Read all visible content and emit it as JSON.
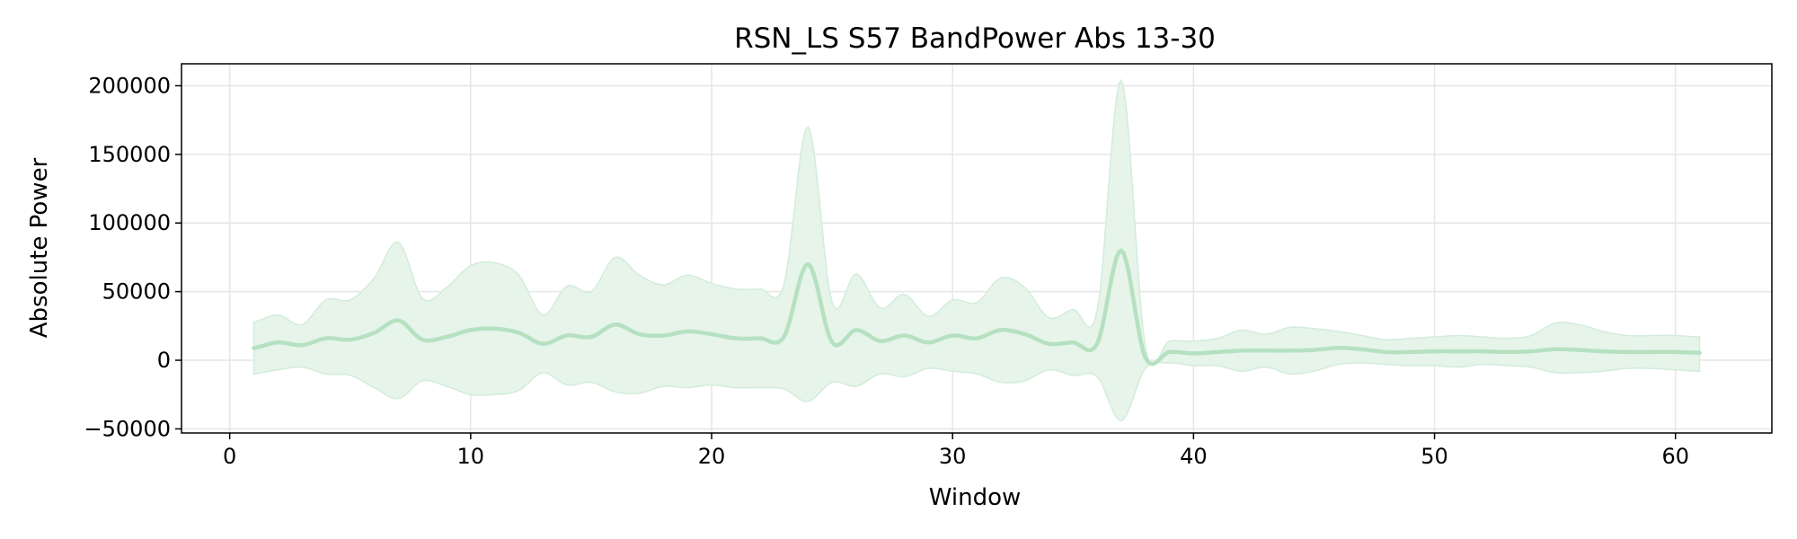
{
  "chart_data": {
    "type": "area",
    "title": "RSN_LS S57 BandPower Abs 13-30",
    "xlabel": "Window",
    "ylabel": "Absolute Power",
    "xlim": [
      -2,
      64
    ],
    "ylim": [
      -53000,
      216000
    ],
    "xticks": [
      0,
      10,
      20,
      30,
      40,
      50,
      60
    ],
    "yticks": [
      -50000,
      0,
      50000,
      100000,
      150000,
      200000
    ],
    "ytick_labels": [
      "−50000",
      "0",
      "50000",
      "100000",
      "150000",
      "200000"
    ],
    "grid": true,
    "legend": "none",
    "colors": {
      "line": "#b5e1c1",
      "band": "#e6f4ea",
      "band_edge": "#d4ecdb"
    },
    "series": [
      {
        "x": [
          1,
          2,
          3,
          4,
          5,
          6,
          7,
          8,
          9,
          10,
          11,
          12,
          13,
          14,
          15,
          16,
          17,
          18,
          19,
          20,
          21,
          22,
          23,
          24,
          25,
          26,
          27,
          28,
          29,
          30,
          31,
          32,
          33,
          34,
          35,
          36,
          37,
          38,
          39,
          40,
          41,
          42,
          43,
          44,
          45,
          46,
          47,
          48,
          49,
          50,
          51,
          52,
          53,
          54,
          55,
          56,
          57,
          58,
          59,
          60,
          61
        ],
        "mean": [
          9000,
          13000,
          11000,
          16000,
          15000,
          20000,
          29000,
          15000,
          17000,
          22000,
          23000,
          20000,
          12000,
          18000,
          17000,
          26000,
          19000,
          18000,
          21000,
          19000,
          16000,
          16000,
          17000,
          70000,
          13000,
          22000,
          14000,
          18000,
          13000,
          18000,
          16000,
          22000,
          19000,
          12000,
          13000,
          12000,
          80000,
          2000,
          6000,
          5000,
          6000,
          7000,
          7000,
          7000,
          7500,
          9000,
          8000,
          6000,
          6000,
          6500,
          6500,
          6500,
          6000,
          6500,
          8000,
          7500,
          6500,
          6000,
          6000,
          6000,
          5500
        ],
        "upper": [
          28000,
          33000,
          26000,
          44000,
          44000,
          60000,
          86000,
          45000,
          53000,
          69000,
          71000,
          62000,
          33000,
          54000,
          50000,
          75000,
          62000,
          55000,
          62000,
          56000,
          52000,
          52000,
          55000,
          170000,
          42000,
          63000,
          38000,
          48000,
          32000,
          44000,
          42000,
          60000,
          53000,
          31000,
          37000,
          36000,
          204000,
          10000,
          14000,
          14000,
          16000,
          22000,
          19000,
          24000,
          23000,
          21000,
          18000,
          15000,
          16000,
          17000,
          18000,
          17000,
          16000,
          18000,
          27000,
          26000,
          21000,
          18000,
          18000,
          18000,
          17000
        ],
        "lower": [
          -10000,
          -7000,
          -5000,
          -10000,
          -11000,
          -20000,
          -28000,
          -15000,
          -19000,
          -25000,
          -25000,
          -22000,
          -9000,
          -18000,
          -16000,
          -23000,
          -24000,
          -19000,
          -20000,
          -18000,
          -20000,
          -20000,
          -21000,
          -30000,
          -16000,
          -19000,
          -10000,
          -12000,
          -6000,
          -8000,
          -10000,
          -16000,
          -15000,
          -7000,
          -11000,
          -12000,
          -44000,
          -6000,
          -2000,
          -4000,
          -4000,
          -8000,
          -5000,
          -10000,
          -8000,
          -3000,
          -2000,
          -3000,
          -4000,
          -4000,
          -5000,
          -3000,
          -4000,
          -5000,
          -9000,
          -9000,
          -8000,
          -6000,
          -6000,
          -7000,
          -8000
        ]
      }
    ]
  }
}
